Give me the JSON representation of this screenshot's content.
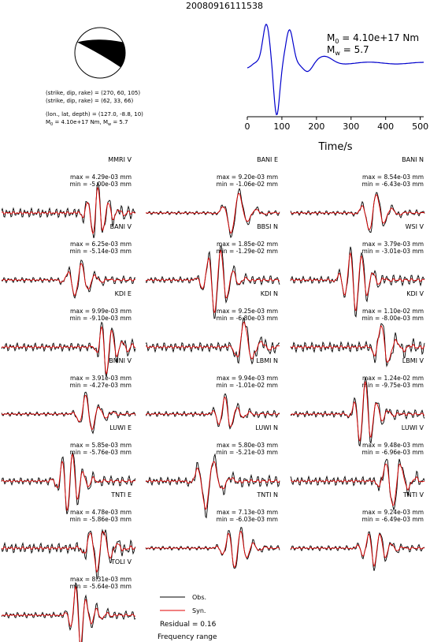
{
  "title": "20080916111538",
  "colors": {
    "obs": "#000000",
    "syn": "#e00000",
    "stf": "#0000cc",
    "beach_fill": "#000000"
  },
  "event": {
    "plane1": "(strike, dip, rake) = (270, 60, 105)",
    "plane2": "(strike, dip, rake) = (62, 33, 66)",
    "location": "(lon., lat, depth) = (127.0, -8.8, 10)",
    "moment": "M",
    "moment_sub": "0",
    "moment_rest": " = 4.10e+17 Nm, M",
    "mw_sub": "w",
    "mw_rest": " = 5.7"
  },
  "stf": {
    "m0_prefix": "M",
    "m0_sub": "0",
    "m0_value": " = 4.10e+17 Nm",
    "mw_prefix": "M",
    "mw_sub": "w",
    "mw_value": " = 5.7",
    "xlabel": "Time/s",
    "ticks": [
      "0",
      "100",
      "200",
      "300",
      "400",
      "500"
    ]
  },
  "panels": [
    {
      "station": "MMRI V",
      "max": "max = 4.29e-03 mm",
      "min": "min = -5.00e-03 mm"
    },
    {
      "station": "BANI E",
      "max": "max = 9.20e-03 mm",
      "min": "min = -1.06e-02 mm"
    },
    {
      "station": "BANI N",
      "max": "max = 8.54e-03 mm",
      "min": "min = -6.43e-03 mm"
    },
    {
      "station": "BANI V",
      "max": "max = 6.25e-03 mm",
      "min": "min = -5.14e-03 mm"
    },
    {
      "station": "BBSI N",
      "max": "max = 1.85e-02 mm",
      "min": "min = -1.29e-02 mm"
    },
    {
      "station": "WSI V",
      "max": "max = 3.79e-03 mm",
      "min": "min = -3.01e-03 mm"
    },
    {
      "station": "KDI E",
      "max": "max = 9.99e-03 mm",
      "min": "min = -9.10e-03 mm"
    },
    {
      "station": "KDI N",
      "max": "max = 9.25e-03 mm",
      "min": "min = -6.80e-03 mm"
    },
    {
      "station": "KDI V",
      "max": "max = 1.10e-02 mm",
      "min": "min = -8.00e-03 mm"
    },
    {
      "station": "BMNI V",
      "max": "max = 3.91e-03 mm",
      "min": "min = -4.27e-03 mm"
    },
    {
      "station": "LBMI N",
      "max": "max = 9.94e-03 mm",
      "min": "min = -1.01e-02 mm"
    },
    {
      "station": "LBMI V",
      "max": "max = 1.24e-02 mm",
      "min": "min = -9.75e-03 mm"
    },
    {
      "station": "LUWI E",
      "max": "max = 5.85e-03 mm",
      "min": "min = -5.76e-03 mm"
    },
    {
      "station": "LUWI N",
      "max": "max = 5.80e-03 mm",
      "min": "min = -5.21e-03 mm"
    },
    {
      "station": "LUWI V",
      "max": "max = 9.48e-03 mm",
      "min": "min = -6.96e-03 mm"
    },
    {
      "station": "TNTI E",
      "max": "max = 4.78e-03 mm",
      "min": "min = -5.86e-03 mm"
    },
    {
      "station": "TNTI N",
      "max": "max = 7.13e-03 mm",
      "min": "min = -6.03e-03 mm"
    },
    {
      "station": "TNTI V",
      "max": "max = 9.24e-03 mm",
      "min": "min = -6.49e-03 mm"
    },
    {
      "station": "TOLI V",
      "max": "max = 8.31e-03 mm",
      "min": "min = -5.64e-03 mm"
    }
  ],
  "legend": {
    "obs": "Obs.",
    "syn": "Syn.",
    "residual": "Residual = 0.16",
    "freq": "Frequency range"
  },
  "chart_data": {
    "type": "line",
    "title": "20080916111538",
    "xlabel": "Time/s",
    "xlim": [
      0,
      500
    ],
    "series": [
      {
        "name": "Obs.",
        "color": "#000000"
      },
      {
        "name": "Syn.",
        "color": "#e00000"
      }
    ]
  }
}
